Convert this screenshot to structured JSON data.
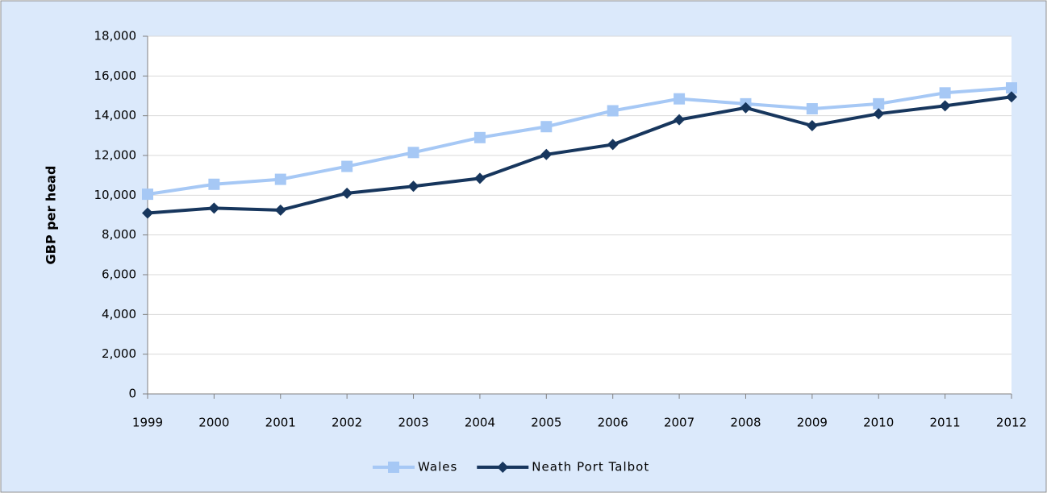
{
  "chart_data": {
    "type": "line",
    "y_axis_label": "GBP per head",
    "categories": [
      "1999",
      "2000",
      "2001",
      "2002",
      "2003",
      "2004",
      "2005",
      "2006",
      "2007",
      "2008",
      "2009",
      "2010",
      "2011",
      "2012"
    ],
    "series": [
      {
        "name": "Wales",
        "color": "#a6c8f5",
        "marker": "square",
        "values": [
          10050,
          10550,
          10800,
          11450,
          12150,
          12900,
          13450,
          14250,
          14850,
          14600,
          14350,
          14600,
          15150,
          15400
        ]
      },
      {
        "name": "Neath Port Talbot",
        "color": "#17365d",
        "marker": "diamond",
        "values": [
          9100,
          9350,
          9250,
          10100,
          10450,
          10850,
          12050,
          12550,
          13800,
          14400,
          13500,
          14100,
          14500,
          14950
        ]
      }
    ],
    "ylim": [
      0,
      18000
    ],
    "yticks": [
      0,
      {
        "value": 2000,
        "label": "2,000"
      },
      {
        "value": 4000,
        "label": "4,000"
      },
      {
        "value": 6000,
        "label": "6,000"
      },
      {
        "value": 8000,
        "label": "8,000"
      },
      {
        "value": 10000,
        "label": "10,000"
      },
      {
        "value": 12000,
        "label": "12,000"
      },
      {
        "value": 14000,
        "label": "14,000"
      },
      {
        "value": 16000,
        "label": "16,000"
      },
      {
        "value": 18000,
        "label": "18,000"
      }
    ],
    "grid": true,
    "legend": "bottom"
  }
}
